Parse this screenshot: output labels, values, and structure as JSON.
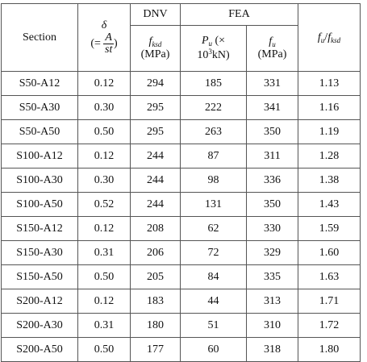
{
  "header": {
    "section": "Section",
    "delta_symbol": "δ",
    "delta_def_prefix": "(=",
    "delta_num": "A",
    "delta_den": "st",
    "delta_def_suffix": ")",
    "dnv": "DNV",
    "fea": "FEA",
    "fksd_base": "f",
    "fksd_sub": "ksd",
    "mpa": "(MPa)",
    "pu_base": "P",
    "pu_sub": "u",
    "pu_times": "(×",
    "pu_unit_pre": "10",
    "pu_unit_sup": "3",
    "pu_unit_post": "kN)",
    "fu_base": "f",
    "fu_sub": "u",
    "ratio_num_base": "f",
    "ratio_num_sub": "u",
    "ratio_slash": "/",
    "ratio_den_base": "f",
    "ratio_den_sub": "ksd"
  },
  "rows": [
    {
      "section": "S50-A12",
      "delta": "0.12",
      "fksd": "294",
      "pu": "185",
      "fu": "331",
      "ratio": "1.13"
    },
    {
      "section": "S50-A30",
      "delta": "0.30",
      "fksd": "295",
      "pu": "222",
      "fu": "341",
      "ratio": "1.16"
    },
    {
      "section": "S50-A50",
      "delta": "0.50",
      "fksd": "295",
      "pu": "263",
      "fu": "350",
      "ratio": "1.19"
    },
    {
      "section": "S100-A12",
      "delta": "0.12",
      "fksd": "244",
      "pu": "87",
      "fu": "311",
      "ratio": "1.28"
    },
    {
      "section": "S100-A30",
      "delta": "0.30",
      "fksd": "244",
      "pu": "98",
      "fu": "336",
      "ratio": "1.38"
    },
    {
      "section": "S100-A50",
      "delta": "0.52",
      "fksd": "244",
      "pu": "131",
      "fu": "350",
      "ratio": "1.43"
    },
    {
      "section": "S150-A12",
      "delta": "0.12",
      "fksd": "208",
      "pu": "62",
      "fu": "330",
      "ratio": "1.59"
    },
    {
      "section": "S150-A30",
      "delta": "0.31",
      "fksd": "206",
      "pu": "72",
      "fu": "329",
      "ratio": "1.60"
    },
    {
      "section": "S150-A50",
      "delta": "0.50",
      "fksd": "205",
      "pu": "84",
      "fu": "335",
      "ratio": "1.63"
    },
    {
      "section": "S200-A12",
      "delta": "0.12",
      "fksd": "183",
      "pu": "44",
      "fu": "313",
      "ratio": "1.71"
    },
    {
      "section": "S200-A30",
      "delta": "0.31",
      "fksd": "180",
      "pu": "51",
      "fu": "310",
      "ratio": "1.72"
    },
    {
      "section": "S200-A50",
      "delta": "0.50",
      "fksd": "177",
      "pu": "60",
      "fu": "318",
      "ratio": "1.80"
    }
  ]
}
